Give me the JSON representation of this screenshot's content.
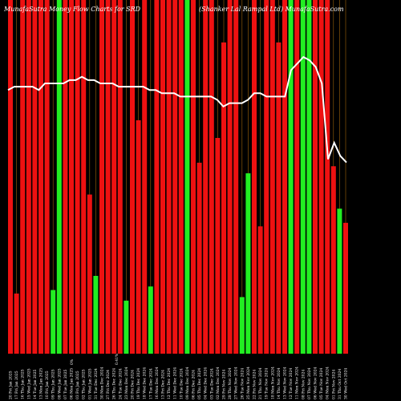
{
  "chart_data": {
    "type": "bar",
    "title_left": "MunafaSutra Money Flow Charts for SRD",
    "title_right": "(Shanker Lal Rampal Ltd) MunafaSutra.com",
    "colors": {
      "background": "#000000",
      "up": "#22ee22",
      "down": "#ee1111",
      "grid": "#a0640a",
      "line": "#ffffff"
    },
    "bar_ylim": [
      0,
      100
    ],
    "line_ylim": [
      0,
      100
    ],
    "bars": [
      {
        "label": "20 Fri Jan 2025",
        "dir": "down",
        "value": 100
      },
      {
        "label": "17 Fri Jan 2025",
        "dir": "down",
        "value": 17
      },
      {
        "label": "16 Thu Jan 2025",
        "dir": "down",
        "value": 100
      },
      {
        "label": "15 Wed Jan 2025",
        "dir": "down",
        "value": 100
      },
      {
        "label": "14 Tue Jan 2025",
        "dir": "down",
        "value": 100
      },
      {
        "label": "13 Mon Jan 2025",
        "dir": "down",
        "value": 100
      },
      {
        "label": "10 Fri Jan 2025",
        "dir": "down",
        "value": 100
      },
      {
        "label": "09 Thu Jan 2025",
        "dir": "up",
        "value": 18
      },
      {
        "label": "08 Wed Jan 2025",
        "dir": "up",
        "value": 100
      },
      {
        "label": "07 Tue Jan 2025",
        "dir": "down",
        "value": 100
      },
      {
        "label": "06 Mon Jan 2025",
        "dir": "down",
        "value": 100
      },
      {
        "label": "03 Fri Jan 2025",
        "dir": "down",
        "value": 100
      },
      {
        "label": "02 Thu Jan 2025",
        "dir": "down",
        "value": 100
      },
      {
        "label": "01 Wed Jan 2025",
        "dir": "down",
        "value": 45
      },
      {
        "label": "31 Tue Dec 2024",
        "dir": "up",
        "value": 22
      },
      {
        "label": "30 Mon Dec 2024",
        "dir": "down",
        "value": 100
      },
      {
        "label": "27 Fri Dec 2024",
        "dir": "down",
        "value": 100
      },
      {
        "label": "26 Thu Dec 2024",
        "dir": "down",
        "value": 100
      },
      {
        "label": "24 Tue Dec 2024",
        "dir": "down",
        "value": 100
      },
      {
        "label": "23 Mon Dec 2024",
        "dir": "up",
        "value": 15
      },
      {
        "label": "20 Fri Dec 2024",
        "dir": "down",
        "value": 100
      },
      {
        "label": "19 Thu Dec 2024",
        "dir": "down",
        "value": 66
      },
      {
        "label": "18 Wed Dec 2024",
        "dir": "down",
        "value": 100
      },
      {
        "label": "17 Tue Dec 2024",
        "dir": "up",
        "value": 19
      },
      {
        "label": "16 Mon Dec 2024",
        "dir": "down",
        "value": 100
      },
      {
        "label": "13 Fri Dec 2024",
        "dir": "down",
        "value": 100
      },
      {
        "label": "12 Thu Dec 2024",
        "dir": "down",
        "value": 100
      },
      {
        "label": "11 Wed Dec 2024",
        "dir": "down",
        "value": 100
      },
      {
        "label": "10 Tue Dec 2024",
        "dir": "down",
        "value": 100
      },
      {
        "label": "09 Mon Dec 2024",
        "dir": "up",
        "value": 100
      },
      {
        "label": "06 Fri Dec 2024",
        "dir": "down",
        "value": 100
      },
      {
        "label": "05 Thu Dec 2024",
        "dir": "down",
        "value": 54
      },
      {
        "label": "04 Wed Dec 2024",
        "dir": "down",
        "value": 100
      },
      {
        "label": "03 Tue Dec 2024",
        "dir": "down",
        "value": 100
      },
      {
        "label": "02 Mon Dec 2024",
        "dir": "down",
        "value": 61
      },
      {
        "label": "29 Fri Nov 2024",
        "dir": "down",
        "value": 88
      },
      {
        "label": "28 Thu Nov 2024",
        "dir": "down",
        "value": 100
      },
      {
        "label": "27 Wed Nov 2024",
        "dir": "down",
        "value": 100
      },
      {
        "label": "26 Tue Nov 2024",
        "dir": "up",
        "value": 16
      },
      {
        "label": "25 Mon Nov 2024",
        "dir": "up",
        "value": 51
      },
      {
        "label": "22 Fri Nov 2024",
        "dir": "down",
        "value": 100
      },
      {
        "label": "21 Thu Nov 2024",
        "dir": "down",
        "value": 36
      },
      {
        "label": "19 Tue Nov 2024",
        "dir": "down",
        "value": 100
      },
      {
        "label": "18 Mon Nov 2024",
        "dir": "down",
        "value": 100
      },
      {
        "label": "14 Thu Nov 2024",
        "dir": "down",
        "value": 88
      },
      {
        "label": "13 Wed Nov 2024",
        "dir": "down",
        "value": 100
      },
      {
        "label": "12 Tue Nov 2024",
        "dir": "up",
        "value": 100
      },
      {
        "label": "11 Mon Nov 2024",
        "dir": "down",
        "value": 100
      },
      {
        "label": "08 Fri Nov 2024",
        "dir": "up",
        "value": 100
      },
      {
        "label": "07 Thu Nov 2024",
        "dir": "up",
        "value": 100
      },
      {
        "label": "06 Wed Nov 2024",
        "dir": "down",
        "value": 100
      },
      {
        "label": "05 Tue Nov 2024",
        "dir": "down",
        "value": 100
      },
      {
        "label": "04 Mon Nov 2024",
        "dir": "down",
        "value": 100
      },
      {
        "label": "01 Fri Nov 2024",
        "dir": "down",
        "value": 53
      },
      {
        "label": "31 Thu Oct 2024",
        "dir": "up",
        "value": 41
      },
      {
        "label": "30 Wed Oct 2024",
        "dir": "down",
        "value": 37
      }
    ],
    "line": [
      80,
      81,
      81,
      81,
      81,
      80,
      82,
      82,
      82,
      82,
      83,
      83,
      84,
      83,
      83,
      82,
      82,
      82,
      81,
      81,
      81,
      81,
      81,
      80,
      80,
      79,
      79,
      79,
      78,
      78,
      78,
      78,
      78,
      78,
      77,
      75,
      76,
      76,
      76,
      77,
      79,
      79,
      78,
      78,
      78,
      78,
      86,
      88,
      90,
      89,
      87,
      82,
      59,
      64,
      60,
      58
    ],
    "extra_tick_labels": [
      "0%",
      "0.41%"
    ]
  }
}
